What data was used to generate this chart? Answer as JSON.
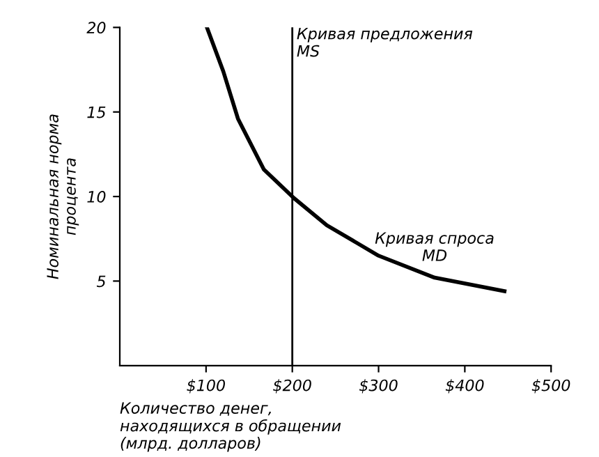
{
  "chart_data": {
    "type": "line",
    "xlabel": "Количество денег,\nнаходящихся в обращении\n(млрд. долларов)",
    "ylabel": "Номинальная норма\nпроцента",
    "x": [
      101,
      120,
      137,
      167,
      202,
      240,
      300,
      365,
      446
    ],
    "series": [
      {
        "name": "Кривая спроса\nMD",
        "color": "#000000",
        "values": [
          20,
          17.4,
          14.6,
          11.6,
          9.9,
          8.3,
          6.5,
          5.2,
          4.4
        ]
      }
    ],
    "xlim": [
      0,
      500
    ],
    "ylim": [
      0,
      20
    ],
    "xticks": [
      {
        "value": 100,
        "label": "$100"
      },
      {
        "value": 200,
        "label": "$200"
      },
      {
        "value": 300,
        "label": "$300"
      },
      {
        "value": 400,
        "label": "$400"
      },
      {
        "value": 500,
        "label": "$500"
      }
    ],
    "yticks": [
      5,
      10,
      15,
      20
    ],
    "ref_lines": [
      {
        "axis": "x",
        "value": 200,
        "label": "Кривая предложения\nMS",
        "color": "#000000"
      }
    ],
    "grid": false,
    "legend": false
  }
}
